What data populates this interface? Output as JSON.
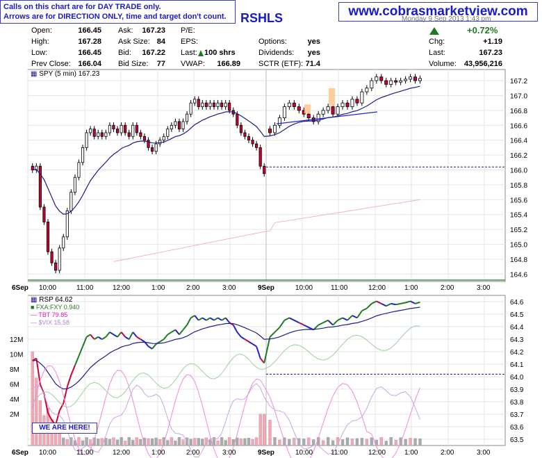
{
  "notice": {
    "line1": "Calls on this chart are for DAY TRADE only.",
    "line2": "Arrows are for DIRECTION ONLY, time and target don't count."
  },
  "website": "www.cobrasmarketview.com",
  "ticker_fragment": "RSHLS",
  "date_fragment": "Monday  9 Sep 2013  1:43 pm",
  "quote": {
    "open_label": "Open:",
    "open": "166.45",
    "high_label": "High:",
    "high": "167.28",
    "low_label": "Low:",
    "low": "166.45",
    "prev_close_label": "Prev Close:",
    "prev_close": "166.04",
    "ask_label": "Ask:",
    "ask": "167.23",
    "ask_size_label": "Ask Size:",
    "ask_size": "84",
    "bid_label": "Bid:",
    "bid": "167.22",
    "bid_size_label": "Bid Size:",
    "bid_size": "77",
    "pe_label": "P/E:",
    "eps_label": "EPS:",
    "last_trade_label": "Last:",
    "last_trade": "100 shrs",
    "vwap_label": "VWAP:",
    "vwap": "166.89",
    "options_label": "Options:",
    "options": "yes",
    "dividends_label": "Dividends:",
    "dividends": "yes",
    "sctr_label": "SCTR (ETF):",
    "sctr": "71.4",
    "pct_change": "+0.72%",
    "chg_label": "Chg:",
    "chg": "+1.19",
    "last_label": "Last:",
    "last": "167.23",
    "volume_label": "Volume:",
    "volume": "43,956,216"
  },
  "colors": {
    "accent": "#1a1acc",
    "up": "#1f7a1f",
    "down": "#cc0033",
    "ma": "#1a1a8c",
    "ma_long": "#f2b3c6",
    "volume_up": "#aaaaaa",
    "volume_down": "#f4a6b4"
  },
  "here_label": "WE ARE HERE!",
  "chart_data": [
    {
      "type": "candlestick",
      "title": "SPY (5 min) 167.23",
      "ylim": [
        164.5,
        167.35
      ],
      "yticks": [
        "167.2",
        "167.0",
        "166.8",
        "166.6",
        "166.4",
        "166.2",
        "166.0",
        "165.8",
        "165.6",
        "165.4",
        "165.2",
        "165.0",
        "164.8",
        "164.6"
      ],
      "xticks": [
        "6Sep",
        "10:00",
        "11:00",
        "12:00",
        "1:00",
        "2:00",
        "3:00",
        "9Sep",
        "10:00",
        "11:00",
        "12:00",
        "1:00",
        "2:00",
        "3:00"
      ],
      "prev_close_line": 166.04,
      "trendline": [
        [
          166.62,
          166.78
        ]
      ],
      "ma_short_series": "20-period",
      "ma_long_series": "200-period",
      "sessions": [
        {
          "day": "6Sep",
          "closes": [
            166.0,
            166.05,
            165.5,
            165.3,
            164.9,
            164.75,
            164.65,
            164.95,
            165.1,
            165.45,
            165.7,
            165.9,
            166.1,
            166.3,
            166.5,
            166.55,
            166.45,
            166.5,
            166.45,
            166.5,
            166.6,
            166.55,
            166.5,
            166.6,
            166.5,
            166.45,
            166.6,
            166.5,
            166.45,
            166.4,
            166.3,
            166.25,
            166.35,
            166.4,
            166.45,
            166.55,
            166.6,
            166.65,
            166.55,
            166.65,
            166.75,
            166.9,
            166.95,
            166.85,
            166.9,
            166.85,
            166.9,
            166.85,
            166.9,
            166.85,
            166.9,
            166.8,
            166.75,
            166.6,
            166.5,
            166.45,
            166.4,
            166.35,
            166.3,
            166.05,
            165.95
          ]
        },
        {
          "day": "9Sep",
          "closes": [
            166.5,
            166.6,
            166.7,
            166.85,
            166.9,
            166.85,
            166.8,
            166.75,
            166.7,
            166.65,
            166.75,
            166.8,
            166.85,
            166.75,
            166.85,
            166.9,
            166.85,
            166.95,
            166.9,
            167.05,
            167.1,
            167.2,
            167.25,
            167.2,
            167.15,
            167.2,
            167.18,
            167.2,
            167.22,
            167.25,
            167.2,
            167.23
          ]
        }
      ]
    },
    {
      "type": "line",
      "title": "RSP 64.62",
      "series": [
        {
          "name": "FXA:FXY 0.940",
          "color": "#1f7a1f"
        },
        {
          "name": "TBT 79.85",
          "color": "#e01ab0"
        },
        {
          "name": "$VIX 15.58",
          "color": "#b080d0"
        }
      ],
      "ylim_right": [
        63.45,
        64.65
      ],
      "yticks_right": [
        "64.6",
        "64.5",
        "64.4",
        "64.3",
        "64.2",
        "64.1",
        "64.0",
        "63.9",
        "63.8",
        "63.7",
        "63.6",
        "63.5"
      ],
      "yticks_left": [
        "12M",
        "10M",
        "8M",
        "6M",
        "4M",
        "2M"
      ],
      "xticks": [
        "6Sep",
        "10:00",
        "11:00",
        "12:00",
        "1:00",
        "2:00",
        "3:00",
        "9Sep",
        "10:00",
        "11:00",
        "12:00",
        "1:00",
        "2:00",
        "3:00"
      ],
      "prev_close_line": 64.02
    }
  ]
}
